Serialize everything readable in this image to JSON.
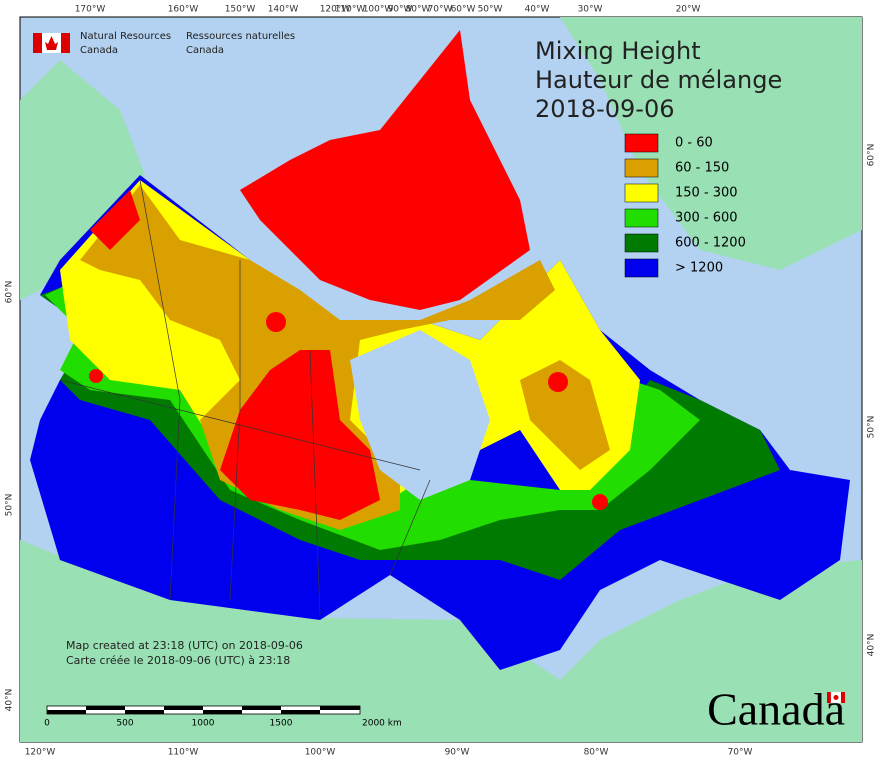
{
  "header": {
    "agency_en": [
      "Natural Resources",
      "Canada"
    ],
    "agency_fr": [
      "Ressources naturelles",
      "Canada"
    ]
  },
  "title": [
    "Mixing Height",
    "Hauteur de mélange",
    "2018-09-06"
  ],
  "legend": [
    {
      "label": "0 - 60",
      "color": "#ff0000"
    },
    {
      "label": "60 - 150",
      "color": "#daa000"
    },
    {
      "label": "150 - 300",
      "color": "#ffff00"
    },
    {
      "label": "300 - 600",
      "color": "#22dd00"
    },
    {
      "label": "600 - 1200",
      "color": "#007a00"
    },
    {
      "label": "> 1200",
      "color": "#0000ee"
    }
  ],
  "graticule": {
    "top": [
      "170°W",
      "160°W",
      "150°W",
      "140°W",
      "120°W",
      "110°W",
      "100°W",
      "90°W",
      "80°W",
      "70°W",
      "60°W",
      "50°W",
      "40°W",
      "30°W",
      "20°W"
    ],
    "bottom": [
      "120°W",
      "110°W",
      "100°W",
      "90°W",
      "80°W",
      "70°W"
    ],
    "left": [
      "60°N",
      "50°N",
      "40°N"
    ],
    "right": [
      "60°N",
      "50°N",
      "40°N"
    ]
  },
  "notes": [
    "Map created at 23:18 (UTC) on 2018-09-06",
    "Carte créée le 2018-09-06 (UTC) à 23:18"
  ],
  "scale_bar": {
    "labels": [
      "0",
      "500",
      "1000",
      "1500",
      "2000 km"
    ]
  },
  "wordmark": "Canada"
}
